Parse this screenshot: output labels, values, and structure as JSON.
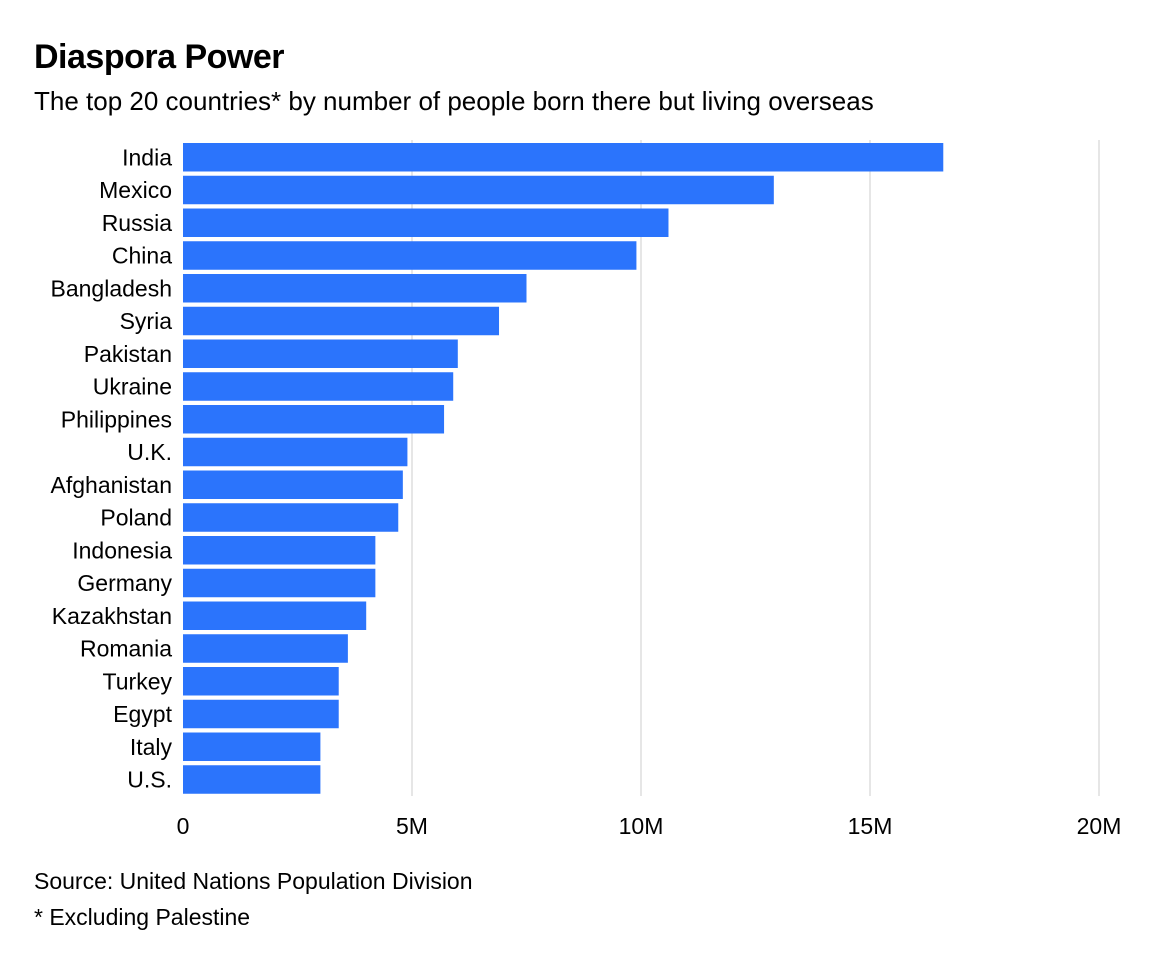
{
  "chart_data": {
    "type": "bar",
    "orientation": "horizontal",
    "title": "Diaspora Power",
    "subtitle": "The top 20 countries* by number of people born there but living overseas",
    "categories": [
      "India",
      "Mexico",
      "Russia",
      "China",
      "Bangladesh",
      "Syria",
      "Pakistan",
      "Ukraine",
      "Philippines",
      "U.K.",
      "Afghanistan",
      "Poland",
      "Indonesia",
      "Germany",
      "Kazakhstan",
      "Romania",
      "Turkey",
      "Egypt",
      "Italy",
      "U.S."
    ],
    "values": [
      16.6,
      12.9,
      10.6,
      9.9,
      7.5,
      6.9,
      6.0,
      5.9,
      5.7,
      4.9,
      4.8,
      4.7,
      4.2,
      4.2,
      4.0,
      3.6,
      3.4,
      3.4,
      3.0,
      3.0
    ],
    "value_units": "millions of people",
    "xlim": [
      0,
      20
    ],
    "x_ticks": [
      0,
      5,
      10,
      15,
      20
    ],
    "x_tick_labels": [
      "0",
      "5M",
      "10M",
      "15M",
      "20M"
    ],
    "grid": true,
    "bar_color": "#2b74fc",
    "grid_color": "#e6e6e6",
    "source": "Source: United Nations Population Division",
    "note": "* Excluding Palestine"
  }
}
